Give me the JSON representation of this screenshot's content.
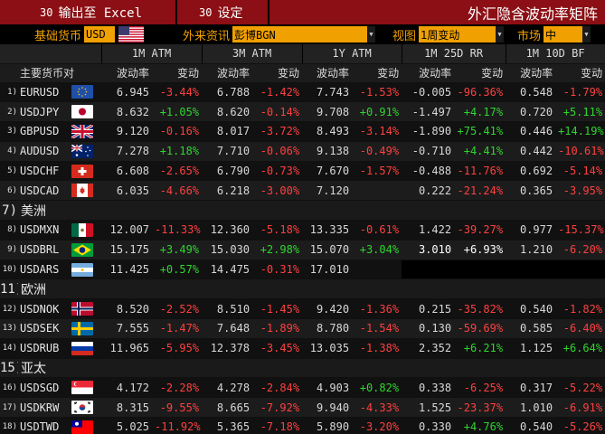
{
  "toolbar": {
    "export_num": "30",
    "export_label": "输出至 Excel",
    "settings_num": "30",
    "settings_label": "设定",
    "title": "外汇隐含波动率矩阵"
  },
  "params": {
    "base_label": "基础货币",
    "base_value": "USD",
    "source_label": "外来资讯",
    "source_value": "彭博BGN",
    "view_label": "视图",
    "view_value": "1周变动",
    "market_label": "市场",
    "market_value": "中"
  },
  "headers": {
    "pair": "主要货币对",
    "groups": [
      "1M ATM",
      "3M ATM",
      "1Y ATM",
      "1M 25D RR",
      "1M 10D BF"
    ],
    "vol": "波动率",
    "chg": "变动"
  },
  "colors": {
    "toolbar_bg": "#8b0f14",
    "field_bg": "#f0a000",
    "positive": "#2fd62f",
    "negative": "#ff4040"
  },
  "rows": [
    {
      "idx": "1)",
      "pair": "EURUSD",
      "flag": "eu",
      "v1": "6.945",
      "c1": "-3.44%",
      "v2": "6.788",
      "c2": "-1.42%",
      "v3": "7.743",
      "c3": "-1.53%",
      "v4": "-0.005",
      "c4": "-96.36%",
      "v5": "0.548",
      "c5": "-1.79%"
    },
    {
      "idx": "2)",
      "pair": "USDJPY",
      "flag": "jp",
      "v1": "8.632",
      "c1": "+1.05%",
      "v2": "8.620",
      "c2": "-0.14%",
      "v3": "9.708",
      "c3": "+0.91%",
      "v4": "-1.497",
      "c4": "+4.17%",
      "v5": "0.720",
      "c5": "+5.11%"
    },
    {
      "idx": "3)",
      "pair": "GBPUSD",
      "flag": "gb",
      "v1": "9.120",
      "c1": "-0.16%",
      "v2": "8.017",
      "c2": "-3.72%",
      "v3": "8.493",
      "c3": "-3.14%",
      "v4": "-1.890",
      "c4": "+75.41%",
      "v5": "0.446",
      "c5": "+14.19%"
    },
    {
      "idx": "4)",
      "pair": "AUDUSD",
      "flag": "au",
      "v1": "7.278",
      "c1": "+1.18%",
      "v2": "7.710",
      "c2": "-0.06%",
      "v3": "9.138",
      "c3": "-0.49%",
      "v4": "-0.710",
      "c4": "+4.41%",
      "v5": "0.442",
      "c5": "-10.61%"
    },
    {
      "idx": "5)",
      "pair": "USDCHF",
      "flag": "ch",
      "v1": "6.608",
      "c1": "-2.65%",
      "v2": "6.790",
      "c2": "-0.73%",
      "v3": "7.670",
      "c3": "-1.57%",
      "v4": "-0.488",
      "c4": "-11.76%",
      "v5": "0.692",
      "c5": "-5.14%"
    },
    {
      "idx": "6)",
      "pair": "USDCAD",
      "flag": "ca",
      "v1": "6.035",
      "c1": "-4.66%",
      "v2": "6.218",
      "c2": "-3.00%",
      "v3": "7.120",
      "c3": "",
      "v4": "0.222",
      "c4": "-21.24%",
      "v5": "0.365",
      "c5": "-3.95%"
    },
    {
      "region": true,
      "idx": "7)",
      "name": "美洲"
    },
    {
      "idx": "8)",
      "pair": "USDMXN",
      "flag": "mx",
      "v1": "12.007",
      "c1": "-11.33%",
      "v2": "12.360",
      "c2": "-5.18%",
      "v3": "13.335",
      "c3": "-0.61%",
      "v4": "1.422",
      "c4": "-39.27%",
      "v5": "0.977",
      "c5": "-15.37%"
    },
    {
      "idx": "9)",
      "pair": "USDBRL",
      "flag": "br",
      "v1": "15.175",
      "c1": "+3.49%",
      "v2": "15.030",
      "c2": "+2.98%",
      "v3": "15.070",
      "c3": "+3.04%",
      "v4": "3.010",
      "c4": "+6.93%",
      "v5": "1.210",
      "c5": "-6.20%",
      "white": true
    },
    {
      "idx": "10)",
      "pair": "USDARS",
      "flag": "ar",
      "v1": "11.425",
      "c1": "+0.57%",
      "v2": "14.475",
      "c2": "-0.31%",
      "v3": "17.010",
      "c3": "",
      "v4": "",
      "c4": "",
      "v5": "",
      "c5": ""
    },
    {
      "region": true,
      "idx": "11)",
      "name": "欧洲"
    },
    {
      "idx": "12)",
      "pair": "USDNOK",
      "flag": "no",
      "v1": "8.520",
      "c1": "-2.52%",
      "v2": "8.510",
      "c2": "-1.45%",
      "v3": "9.420",
      "c3": "-1.36%",
      "v4": "0.215",
      "c4": "-35.82%",
      "v5": "0.540",
      "c5": "-1.82%"
    },
    {
      "idx": "13)",
      "pair": "USDSEK",
      "flag": "se",
      "v1": "7.555",
      "c1": "-1.47%",
      "v2": "7.648",
      "c2": "-1.89%",
      "v3": "8.780",
      "c3": "-1.54%",
      "v4": "0.130",
      "c4": "-59.69%",
      "v5": "0.585",
      "c5": "-6.40%"
    },
    {
      "idx": "14)",
      "pair": "USDRUB",
      "flag": "ru",
      "v1": "11.965",
      "c1": "-5.95%",
      "v2": "12.378",
      "c2": "-3.45%",
      "v3": "13.035",
      "c3": "-1.38%",
      "v4": "2.352",
      "c4": "+6.21%",
      "v5": "1.125",
      "c5": "+6.64%"
    },
    {
      "region": true,
      "idx": "15)",
      "name": "亚太"
    },
    {
      "idx": "16)",
      "pair": "USDSGD",
      "flag": "sg",
      "v1": "4.172",
      "c1": "-2.28%",
      "v2": "4.278",
      "c2": "-2.84%",
      "v3": "4.903",
      "c3": "+0.82%",
      "v4": "0.338",
      "c4": "-6.25%",
      "v5": "0.317",
      "c5": "-5.22%"
    },
    {
      "idx": "17)",
      "pair": "USDKRW",
      "flag": "kr",
      "v1": "8.315",
      "c1": "-9.55%",
      "v2": "8.665",
      "c2": "-7.92%",
      "v3": "9.940",
      "c3": "-4.33%",
      "v4": "1.525",
      "c4": "-23.37%",
      "v5": "1.010",
      "c5": "-6.91%"
    },
    {
      "idx": "18)",
      "pair": "USDTWD",
      "flag": "tw",
      "v1": "5.025",
      "c1": "-11.92%",
      "v2": "5.365",
      "c2": "-7.18%",
      "v3": "5.890",
      "c3": "-3.20%",
      "v4": "0.330",
      "c4": "+4.76%",
      "v5": "0.540",
      "c5": "-5.26%"
    }
  ]
}
